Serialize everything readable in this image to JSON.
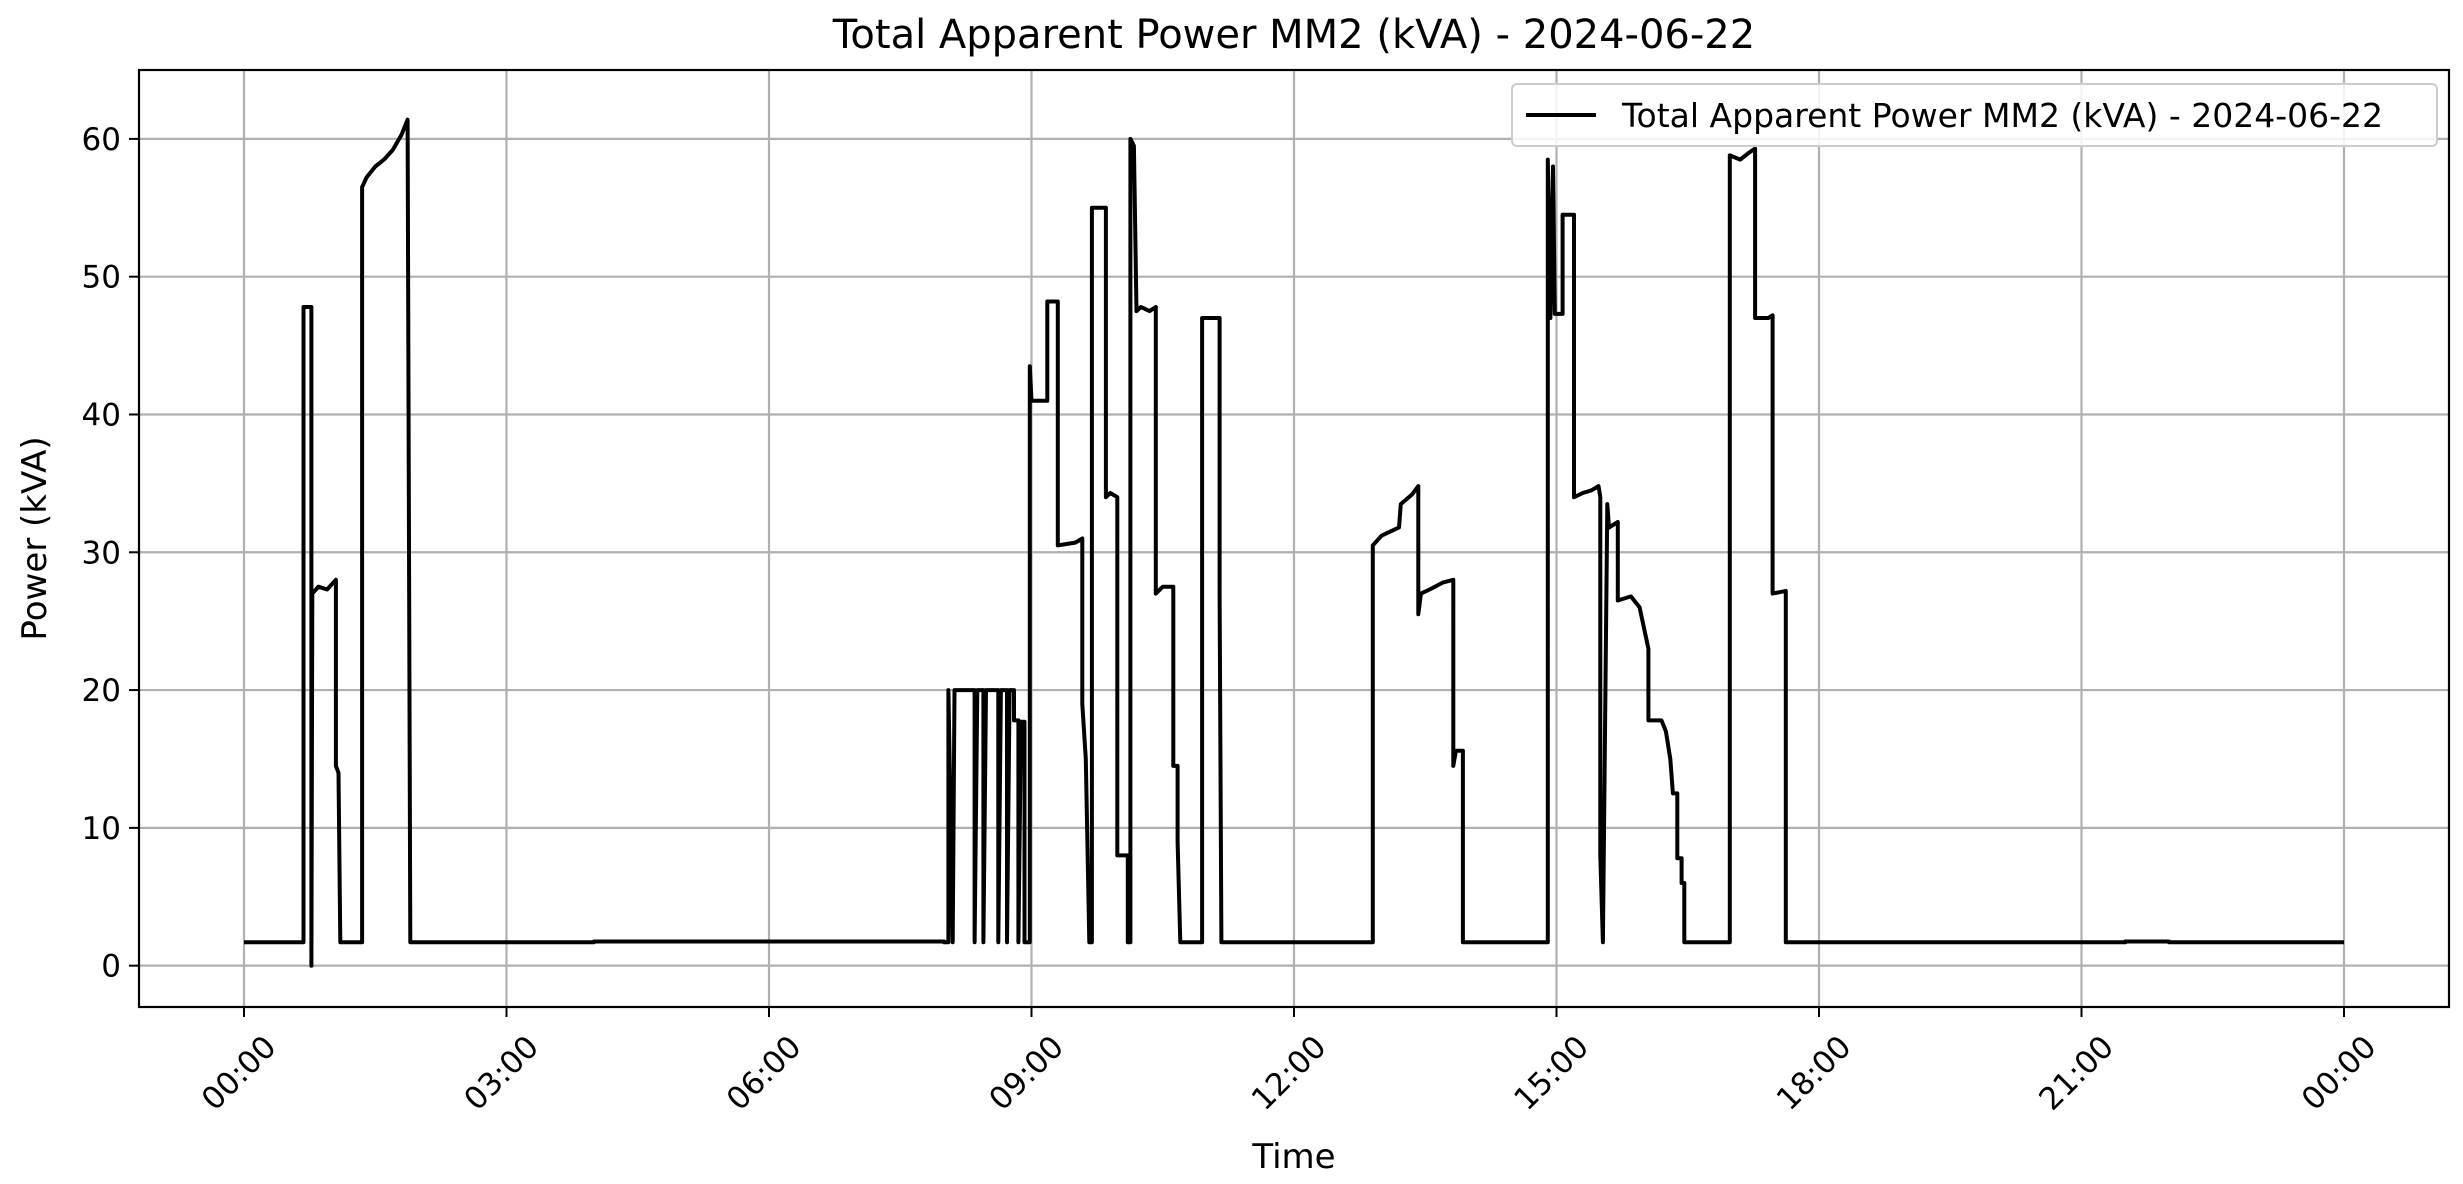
{
  "chart_data": {
    "type": "line",
    "title": "Total Apparent Power MM2 (kVA) - 2024-06-22",
    "xlabel": "Time",
    "ylabel": "Power (kVA)",
    "ylim": [
      -3,
      65
    ],
    "xlim": [
      -1.2,
      25.2
    ],
    "x_unit": "hours since 2024-06-22 00:00",
    "x_ticks": [
      {
        "value": 0,
        "label": "00:00"
      },
      {
        "value": 3,
        "label": "03:00"
      },
      {
        "value": 6,
        "label": "06:00"
      },
      {
        "value": 9,
        "label": "09:00"
      },
      {
        "value": 12,
        "label": "12:00"
      },
      {
        "value": 15,
        "label": "15:00"
      },
      {
        "value": 18,
        "label": "18:00"
      },
      {
        "value": 21,
        "label": "21:00"
      },
      {
        "value": 24,
        "label": "00:00"
      }
    ],
    "y_ticks": [
      {
        "value": 0,
        "label": "0"
      },
      {
        "value": 10,
        "label": "10"
      },
      {
        "value": 20,
        "label": "20"
      },
      {
        "value": 30,
        "label": "30"
      },
      {
        "value": 40,
        "label": "40"
      },
      {
        "value": 50,
        "label": "50"
      },
      {
        "value": 60,
        "label": "60"
      }
    ],
    "grid": true,
    "legend_position": "top-right",
    "series": [
      {
        "name": "Total Apparent Power MM2 (kVA) - 2024-06-22",
        "color": "#000000",
        "points": [
          [
            0.0,
            1.7
          ],
          [
            0.68,
            1.7
          ],
          [
            0.68,
            47.8
          ],
          [
            0.77,
            47.8
          ],
          [
            0.77,
            0.0
          ],
          [
            0.78,
            27.0
          ],
          [
            0.85,
            27.5
          ],
          [
            0.95,
            27.3
          ],
          [
            1.05,
            28.0
          ],
          [
            1.05,
            14.5
          ],
          [
            1.08,
            14.0
          ],
          [
            1.1,
            1.7
          ],
          [
            1.35,
            1.7
          ],
          [
            1.35,
            56.5
          ],
          [
            1.4,
            57.2
          ],
          [
            1.5,
            58.0
          ],
          [
            1.6,
            58.5
          ],
          [
            1.7,
            59.2
          ],
          [
            1.8,
            60.3
          ],
          [
            1.87,
            61.4
          ],
          [
            1.9,
            1.7
          ],
          [
            4.0,
            1.7
          ],
          [
            4.0,
            1.75
          ],
          [
            8.0,
            1.75
          ],
          [
            8.0,
            1.7
          ],
          [
            8.05,
            1.7
          ],
          [
            8.05,
            20.0
          ],
          [
            8.1,
            1.7
          ],
          [
            8.12,
            20.0
          ],
          [
            8.35,
            20.0
          ],
          [
            8.35,
            1.7
          ],
          [
            8.38,
            20.0
          ],
          [
            8.45,
            20.0
          ],
          [
            8.45,
            1.7
          ],
          [
            8.48,
            20.0
          ],
          [
            8.62,
            20.0
          ],
          [
            8.62,
            1.7
          ],
          [
            8.65,
            20.0
          ],
          [
            8.72,
            20.0
          ],
          [
            8.72,
            1.7
          ],
          [
            8.75,
            20.0
          ],
          [
            8.8,
            20.0
          ],
          [
            8.8,
            17.8
          ],
          [
            8.85,
            17.8
          ],
          [
            8.85,
            1.7
          ],
          [
            8.88,
            17.7
          ],
          [
            8.92,
            17.7
          ],
          [
            8.92,
            1.7
          ],
          [
            8.98,
            1.7
          ],
          [
            8.98,
            43.5
          ],
          [
            9.0,
            41.0
          ],
          [
            9.18,
            41.0
          ],
          [
            9.18,
            48.2
          ],
          [
            9.3,
            48.2
          ],
          [
            9.3,
            30.5
          ],
          [
            9.5,
            30.7
          ],
          [
            9.58,
            31.0
          ],
          [
            9.58,
            19.0
          ],
          [
            9.62,
            15.0
          ],
          [
            9.66,
            1.7
          ],
          [
            9.69,
            1.7
          ],
          [
            9.69,
            55.0
          ],
          [
            9.85,
            55.0
          ],
          [
            9.85,
            34.0
          ],
          [
            9.9,
            34.3
          ],
          [
            9.98,
            34.0
          ],
          [
            9.98,
            8.0
          ],
          [
            10.1,
            8.0
          ],
          [
            10.1,
            1.7
          ],
          [
            10.13,
            1.7
          ],
          [
            10.13,
            60.0
          ],
          [
            10.17,
            59.5
          ],
          [
            10.2,
            47.5
          ],
          [
            10.25,
            47.8
          ],
          [
            10.35,
            47.5
          ],
          [
            10.42,
            47.8
          ],
          [
            10.42,
            27.0
          ],
          [
            10.5,
            27.5
          ],
          [
            10.62,
            27.5
          ],
          [
            10.62,
            14.5
          ],
          [
            10.67,
            14.5
          ],
          [
            10.67,
            9.0
          ],
          [
            10.7,
            1.7
          ],
          [
            10.95,
            1.7
          ],
          [
            10.95,
            47.0
          ],
          [
            11.15,
            47.0
          ],
          [
            11.15,
            27.0
          ],
          [
            11.17,
            1.7
          ],
          [
            12.9,
            1.7
          ],
          [
            12.9,
            30.5
          ],
          [
            13.0,
            31.2
          ],
          [
            13.2,
            31.8
          ],
          [
            13.22,
            33.5
          ],
          [
            13.35,
            34.2
          ],
          [
            13.42,
            34.8
          ],
          [
            13.42,
            25.5
          ],
          [
            13.45,
            27.0
          ],
          [
            13.55,
            27.3
          ],
          [
            13.7,
            27.8
          ],
          [
            13.82,
            28.0
          ],
          [
            13.82,
            14.5
          ],
          [
            13.85,
            15.6
          ],
          [
            13.93,
            15.6
          ],
          [
            13.93,
            1.7
          ],
          [
            14.9,
            1.7
          ],
          [
            14.9,
            58.5
          ],
          [
            14.93,
            47.0
          ],
          [
            14.96,
            58.0
          ],
          [
            14.98,
            47.3
          ],
          [
            15.07,
            47.3
          ],
          [
            15.07,
            54.5
          ],
          [
            15.2,
            54.5
          ],
          [
            15.2,
            34.0
          ],
          [
            15.3,
            34.3
          ],
          [
            15.4,
            34.5
          ],
          [
            15.48,
            34.8
          ],
          [
            15.5,
            34.0
          ],
          [
            15.5,
            8.0
          ],
          [
            15.53,
            1.7
          ],
          [
            15.58,
            33.5
          ],
          [
            15.6,
            31.8
          ],
          [
            15.7,
            32.2
          ],
          [
            15.7,
            26.5
          ],
          [
            15.85,
            26.8
          ],
          [
            15.95,
            26.0
          ],
          [
            16.0,
            24.5
          ],
          [
            16.05,
            23.0
          ],
          [
            16.05,
            17.8
          ],
          [
            16.2,
            17.8
          ],
          [
            16.25,
            17.0
          ],
          [
            16.3,
            15.0
          ],
          [
            16.33,
            12.5
          ],
          [
            16.38,
            12.5
          ],
          [
            16.38,
            7.8
          ],
          [
            16.43,
            7.8
          ],
          [
            16.43,
            6.0
          ],
          [
            16.46,
            6.0
          ],
          [
            16.46,
            1.7
          ],
          [
            16.98,
            1.7
          ],
          [
            16.98,
            58.8
          ],
          [
            17.1,
            58.5
          ],
          [
            17.2,
            59.0
          ],
          [
            17.27,
            59.3
          ],
          [
            17.27,
            47.0
          ],
          [
            17.42,
            47.0
          ],
          [
            17.47,
            47.2
          ],
          [
            17.47,
            27.0
          ],
          [
            17.62,
            27.2
          ],
          [
            17.62,
            1.7
          ],
          [
            21.5,
            1.7
          ],
          [
            21.5,
            1.75
          ],
          [
            22.0,
            1.75
          ],
          [
            22.0,
            1.7
          ],
          [
            24.0,
            1.7
          ]
        ]
      }
    ]
  }
}
